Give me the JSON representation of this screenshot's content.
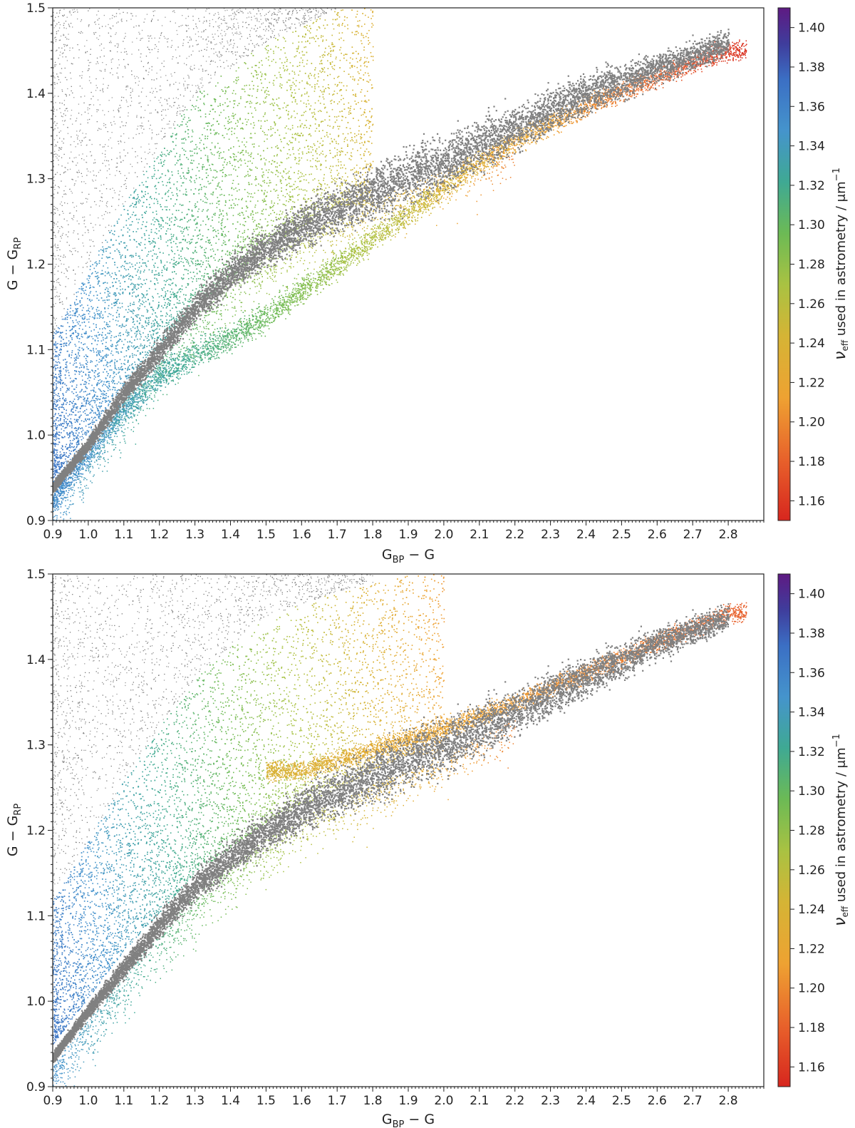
{
  "chart_data": [
    {
      "type": "scatter",
      "xlabel": {
        "main": "G",
        "sub": "BP",
        "rest": " − G"
      },
      "ylabel": {
        "main": "G − G",
        "sub": "RP"
      },
      "xlim": [
        0.9,
        2.9
      ],
      "ylim": [
        0.9,
        1.5
      ],
      "x_ticks": [
        "0.9",
        "1.0",
        "1.1",
        "1.2",
        "1.3",
        "1.4",
        "1.5",
        "1.6",
        "1.7",
        "1.8",
        "1.9",
        "2.0",
        "2.1",
        "2.2",
        "2.3",
        "2.4",
        "2.5",
        "2.6",
        "2.7",
        "2.8"
      ],
      "y_ticks": [
        "0.9",
        "1.0",
        "1.1",
        "1.2",
        "1.3",
        "1.4",
        "1.5"
      ],
      "colorbar": {
        "label": {
          "nu": "ν",
          "sub": "eff",
          "rest": " used in astrometry / μm",
          "sup": "−1"
        },
        "range": [
          1.15,
          1.41
        ],
        "ticks": [
          "1.16",
          "1.18",
          "1.20",
          "1.22",
          "1.24",
          "1.26",
          "1.28",
          "1.30",
          "1.32",
          "1.34",
          "1.36",
          "1.38",
          "1.40"
        ],
        "colormap": "spectral"
      },
      "grey_color": "#808080",
      "series": [
        {
          "kind": "ridge",
          "color_value": null,
          "x": [
            0.9,
            1.0,
            1.1,
            1.2,
            1.3,
            1.4,
            1.5,
            1.6,
            1.7,
            1.8,
            1.9,
            2.0,
            2.2,
            2.4,
            2.6,
            2.8
          ],
          "y": [
            0.94,
            0.99,
            1.05,
            1.1,
            1.15,
            1.19,
            1.22,
            1.245,
            1.265,
            1.285,
            1.305,
            1.32,
            1.36,
            1.4,
            1.43,
            1.46
          ]
        },
        {
          "kind": "lower_branch",
          "color_value": "varies",
          "x": [
            0.9,
            1.0,
            1.1,
            1.2,
            1.3,
            1.4,
            1.5,
            1.6,
            1.7,
            1.8,
            1.9,
            2.0,
            2.1,
            2.2,
            2.4,
            2.6,
            2.8
          ],
          "y": [
            0.93,
            0.98,
            1.03,
            1.07,
            1.095,
            1.115,
            1.14,
            1.17,
            1.2,
            1.23,
            1.26,
            1.29,
            1.32,
            1.345,
            1.385,
            1.42,
            1.45
          ]
        },
        {
          "kind": "upper_wedge",
          "color_value": "varies",
          "x": [
            0.9,
            1.1,
            1.3,
            1.5,
            1.7
          ],
          "y_min": [
            0.95,
            1.06,
            1.15,
            1.22,
            1.27
          ],
          "y_max": [
            1.12,
            1.27,
            1.4,
            1.46,
            1.5
          ]
        }
      ]
    },
    {
      "type": "scatter",
      "xlabel": {
        "main": "G",
        "sub": "BP",
        "rest": " − G"
      },
      "ylabel": {
        "main": "G − G",
        "sub": "RP"
      },
      "xlim": [
        0.9,
        2.9
      ],
      "ylim": [
        0.9,
        1.5
      ],
      "x_ticks": [
        "0.9",
        "1.0",
        "1.1",
        "1.2",
        "1.3",
        "1.4",
        "1.5",
        "1.6",
        "1.7",
        "1.8",
        "1.9",
        "2.0",
        "2.1",
        "2.2",
        "2.3",
        "2.4",
        "2.5",
        "2.6",
        "2.7",
        "2.8"
      ],
      "y_ticks": [
        "0.9",
        "1.0",
        "1.1",
        "1.2",
        "1.3",
        "1.4",
        "1.5"
      ],
      "colorbar": {
        "label": {
          "nu": "ν",
          "sub": "eff",
          "rest": " used in astrometry / μm",
          "sup": "−1"
        },
        "range": [
          1.15,
          1.41
        ],
        "ticks": [
          "1.16",
          "1.18",
          "1.20",
          "1.22",
          "1.24",
          "1.26",
          "1.28",
          "1.30",
          "1.32",
          "1.34",
          "1.36",
          "1.38",
          "1.40"
        ],
        "colormap": "spectral"
      },
      "grey_color": "#808080",
      "series": [
        {
          "kind": "ridge",
          "color_value": null,
          "x": [
            0.9,
            1.0,
            1.1,
            1.2,
            1.3,
            1.4,
            1.5,
            1.6,
            1.7,
            1.8,
            1.9,
            2.0,
            2.2,
            2.4,
            2.6,
            2.8
          ],
          "y": [
            0.935,
            0.99,
            1.04,
            1.09,
            1.135,
            1.17,
            1.2,
            1.225,
            1.245,
            1.265,
            1.285,
            1.3,
            1.34,
            1.38,
            1.42,
            1.45
          ]
        },
        {
          "kind": "upper_branch",
          "color_value": "varies",
          "x": [
            1.6,
            1.8,
            2.0,
            2.2,
            2.4,
            2.6,
            2.8
          ],
          "y": [
            1.27,
            1.295,
            1.32,
            1.35,
            1.385,
            1.42,
            1.455
          ]
        },
        {
          "kind": "upper_wedge",
          "color_value": "varies",
          "x": [
            0.9,
            1.1,
            1.3,
            1.5,
            1.7,
            1.9
          ],
          "y_min": [
            0.95,
            1.06,
            1.15,
            1.21,
            1.25,
            1.29
          ],
          "y_max": [
            1.12,
            1.26,
            1.38,
            1.45,
            1.48,
            1.5
          ]
        }
      ]
    }
  ]
}
